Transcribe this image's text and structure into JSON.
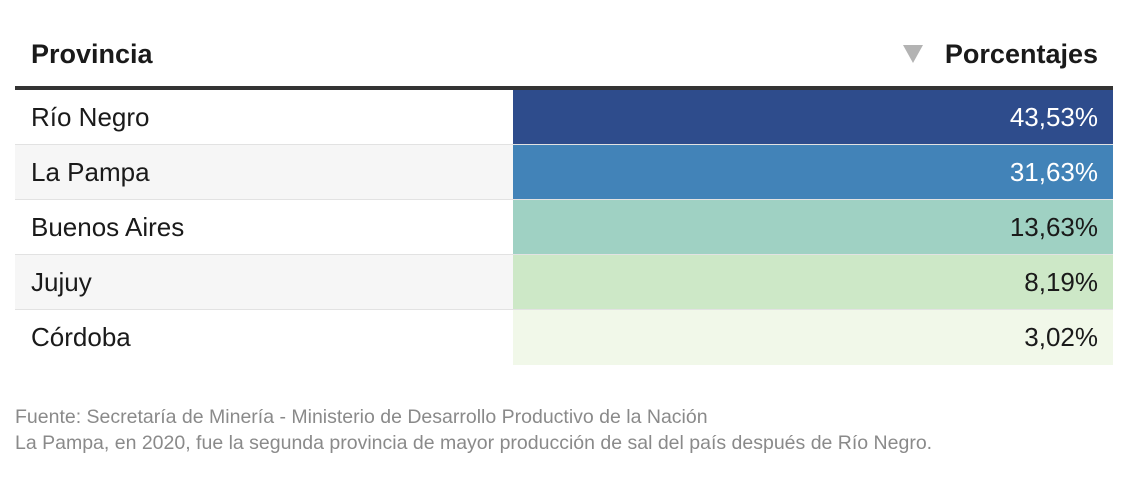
{
  "header": {
    "left": "Provincia",
    "right": "Porcentajes"
  },
  "chart_data": {
    "type": "table",
    "columns": [
      "Provincia",
      "Porcentajes"
    ],
    "rows": [
      {
        "name": "Río Negro",
        "label": "43,53%",
        "value": 43.53,
        "color": "#2e4c8c",
        "text_color": "#ffffff"
      },
      {
        "name": "La Pampa",
        "label": "31,63%",
        "value": 31.63,
        "color": "#4283b8",
        "text_color": "#ffffff"
      },
      {
        "name": "Buenos Aires",
        "label": "13,63%",
        "value": 13.63,
        "color": "#9fd1c3",
        "text_color": "#1a1a1a"
      },
      {
        "name": "Jujuy",
        "label": "8,19%",
        "value": 8.19,
        "color": "#cde8c7",
        "text_color": "#1a1a1a"
      },
      {
        "name": "Córdoba",
        "label": "3,02%",
        "value": 3.02,
        "color": "#f1f8e9",
        "text_color": "#1a1a1a"
      }
    ]
  },
  "footer": {
    "source": "Fuente: Secretaría de Minería - Ministerio de Desarrollo Productivo de la Nación",
    "note": "La Pampa, en 2020, fue la segunda provincia de mayor producción de sal del país después de Río Negro."
  }
}
